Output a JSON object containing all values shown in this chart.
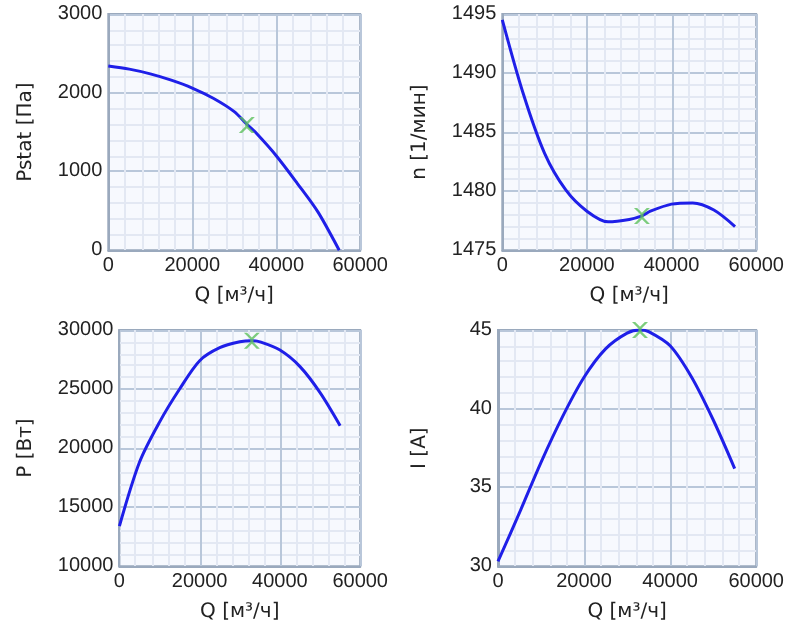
{
  "chart_data": [
    {
      "type": "line",
      "xlabel": "Q [м³/ч]",
      "ylabel": "Pstat [Па]",
      "xlim": [
        0,
        60000
      ],
      "xticks": [
        0,
        20000,
        40000,
        60000
      ],
      "ylim": [
        0,
        3000
      ],
      "yticks": [
        0,
        1000,
        2000,
        3000
      ],
      "grid": true,
      "series": [
        {
          "color": "#1f1fe8",
          "x": [
            0,
            5000,
            10000,
            15000,
            20000,
            25000,
            30000,
            33000,
            35000,
            40000,
            45000,
            50000,
            55000
          ],
          "values": [
            2340,
            2300,
            2240,
            2160,
            2060,
            1930,
            1760,
            1600,
            1500,
            1200,
            850,
            480,
            0
          ],
          "marker": "none"
        },
        {
          "type": "scatter",
          "color": "#5cc05c",
          "x": [
            33000
          ],
          "values": [
            1590
          ],
          "marker": "cross"
        }
      ]
    },
    {
      "type": "line",
      "xlabel": "Q [м³/ч]",
      "ylabel": "n [1/мин]",
      "xlim": [
        0,
        60000
      ],
      "xticks": [
        0,
        20000,
        40000,
        60000
      ],
      "ylim": [
        1475,
        1495
      ],
      "yticks": [
        1475,
        1480,
        1485,
        1490,
        1495
      ],
      "grid": true,
      "series": [
        {
          "color": "#1f1fe8",
          "x": [
            0,
            5000,
            10000,
            15000,
            20000,
            25000,
            30000,
            33000,
            35000,
            40000,
            45000,
            50000,
            55000
          ],
          "values": [
            1494.5,
            1488.2,
            1483.2,
            1480.1,
            1478.3,
            1477.4,
            1477.6,
            1477.9,
            1478.3,
            1478.9,
            1479.0,
            1478.4,
            1477.0
          ],
          "marker": "none"
        },
        {
          "type": "scatter",
          "color": "#5cc05c",
          "x": [
            33000
          ],
          "values": [
            1477.9
          ],
          "marker": "cross"
        }
      ]
    },
    {
      "type": "line",
      "xlabel": "Q [м³/ч]",
      "ylabel": "P [Вт]",
      "xlim": [
        0,
        60000
      ],
      "xticks": [
        0,
        20000,
        40000,
        60000
      ],
      "ylim": [
        10000,
        30000
      ],
      "yticks": [
        10000,
        15000,
        20000,
        25000,
        30000
      ],
      "grid": true,
      "series": [
        {
          "color": "#1f1fe8",
          "x": [
            0,
            5000,
            10000,
            15000,
            20000,
            25000,
            30000,
            33000,
            35000,
            40000,
            45000,
            50000,
            55000
          ],
          "values": [
            13400,
            18800,
            22200,
            25000,
            27400,
            28500,
            29000,
            29100,
            29000,
            28300,
            26900,
            24700,
            21900
          ],
          "marker": "none"
        },
        {
          "type": "scatter",
          "color": "#5cc05c",
          "x": [
            33000
          ],
          "values": [
            29100
          ],
          "marker": "cross"
        }
      ]
    },
    {
      "type": "line",
      "xlabel": "Q [м³/ч]",
      "ylabel": "I [A]",
      "xlim": [
        0,
        60000
      ],
      "xticks": [
        0,
        20000,
        40000,
        60000
      ],
      "ylim": [
        30,
        45
      ],
      "yticks": [
        30,
        35,
        40,
        45
      ],
      "grid": true,
      "series": [
        {
          "color": "#1f1fe8",
          "x": [
            0,
            5000,
            10000,
            15000,
            20000,
            25000,
            30000,
            33000,
            35000,
            40000,
            45000,
            50000,
            55000
          ],
          "values": [
            30.3,
            33.4,
            36.6,
            39.5,
            42.0,
            43.8,
            44.8,
            45.0,
            44.9,
            44.0,
            42.0,
            39.3,
            36.2
          ],
          "marker": "none"
        },
        {
          "type": "scatter",
          "color": "#5cc05c",
          "x": [
            33000
          ],
          "values": [
            45.0
          ],
          "marker": "cross"
        }
      ]
    }
  ]
}
